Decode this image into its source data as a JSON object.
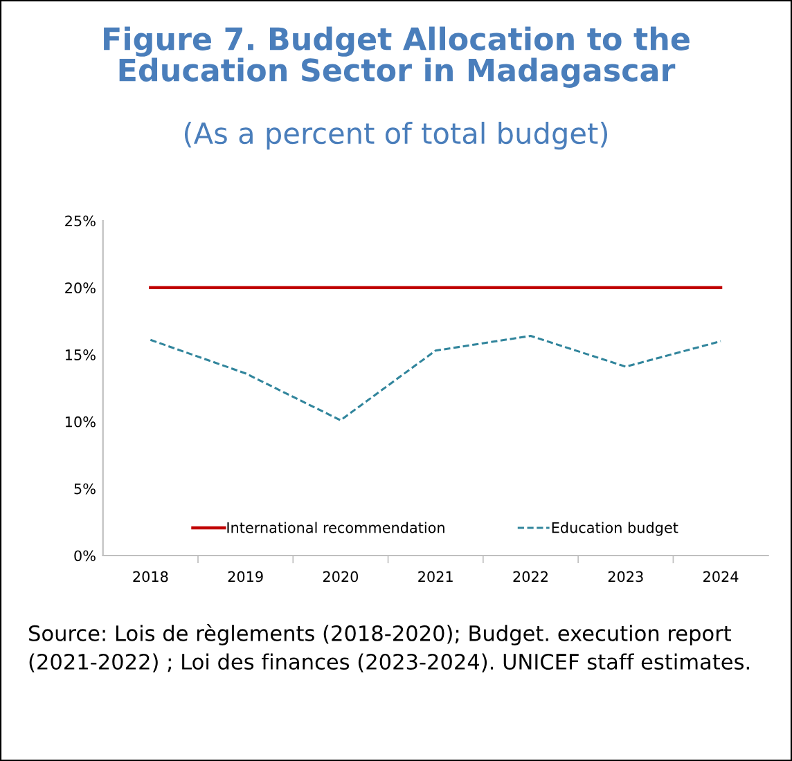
{
  "chart_data": {
    "type": "line",
    "title": "Figure 7. Budget Allocation to the\nEducation Sector in Madagascar",
    "subtitle": "(As a percent of total budget)",
    "categories": [
      "2018",
      "2019",
      "2020",
      "2021",
      "2022",
      "2023",
      "2024"
    ],
    "series": [
      {
        "name": "International recommendation",
        "color": "#c00000",
        "line_style": "solid",
        "values": [
          20,
          20,
          20,
          20,
          20,
          20,
          20
        ]
      },
      {
        "name": "Education budget",
        "color": "#31859c",
        "line_style": "dashed",
        "values": [
          16.1,
          13.6,
          10.1,
          15.3,
          16.4,
          14.1,
          16.0
        ]
      }
    ],
    "ylim": [
      0,
      25
    ],
    "yticks": [
      {
        "value": 0,
        "label": "0%"
      },
      {
        "value": 5,
        "label": "5%"
      },
      {
        "value": 10,
        "label": "10%"
      },
      {
        "value": 15,
        "label": "15%"
      },
      {
        "value": 20,
        "label": "20%"
      },
      {
        "value": 25,
        "label": "25%"
      }
    ],
    "grid": false,
    "legend": "bottom",
    "marker": "none",
    "annotations": [
      "Source: Lois de règlements (2018-2020); Budget. execution report (2021-2022) ; Loi des finances (2023-2024). UNICEF staff estimates."
    ]
  }
}
